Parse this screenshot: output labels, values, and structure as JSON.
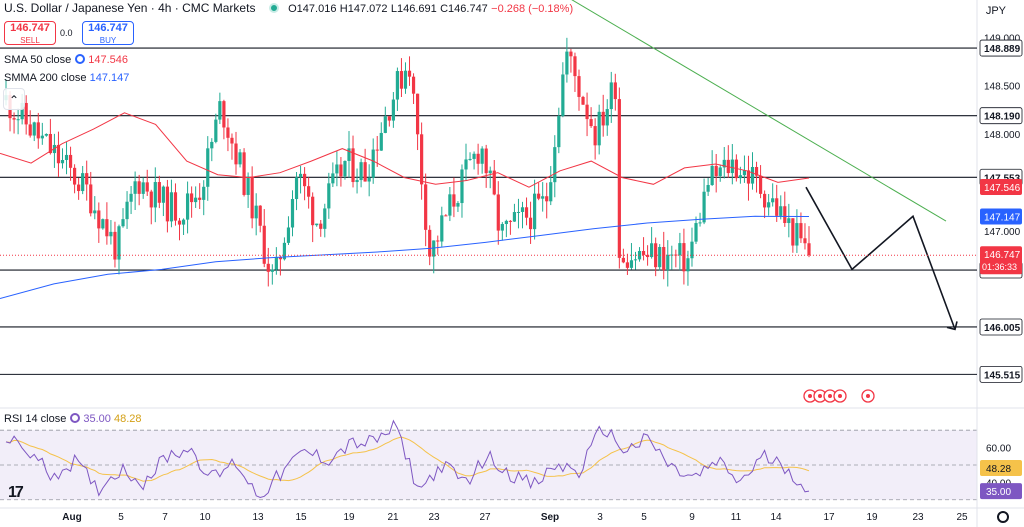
{
  "header": {
    "title": "U.S. Dollar / Japanese Yen · 4h · CMC Markets",
    "open": "O147.016",
    "high": "H147.072",
    "low": "L146.691",
    "close": "C146.747",
    "change": "−0.268 (−0.18%)"
  },
  "trade": {
    "sell_price": "146.747",
    "sell_label": "SELL",
    "spread": "0.0",
    "buy_price": "146.747",
    "buy_label": "BUY"
  },
  "indicators": {
    "sma50_label": "SMA 50 close",
    "sma50_value": "147.546",
    "smma200_label": "SMMA 200 close",
    "smma200_value": "147.147",
    "rsi_label": "RSI 14 close",
    "rsi_value": "35.00",
    "rsi_ma_value": "48.28"
  },
  "currency": "JPY",
  "colors": {
    "up": "#22ab94",
    "down": "#f23645",
    "sma50": "#f23645",
    "smma200": "#2962ff",
    "trendline": "#4caf50",
    "rsi": "#7e57c2",
    "rsi_ma": "#f5c24a",
    "accent": "#2962ff"
  },
  "chart_data": {
    "type": "candlestick",
    "timeframe": "4h",
    "ylim": [
      145.25,
      149.2
    ],
    "price_ticks": [
      "149.000",
      "148.500",
      "148.000",
      "147.000"
    ],
    "time_ticks": [
      "Aug",
      "5",
      "7",
      "10",
      "13",
      "15",
      "19",
      "21",
      "23",
      "27",
      "Sep",
      "3",
      "5",
      "9",
      "11",
      "14",
      "17",
      "19",
      "23",
      "25"
    ],
    "last_price": 146.747,
    "countdown": "01:36:33",
    "horizontal_levels": [
      148.889,
      148.19,
      147.553,
      146.594,
      146.005,
      145.515
    ],
    "anchors": [
      {
        "label": "Aug",
        "close": 148.35
      },
      {
        "label": "Aug",
        "close": 147.4
      },
      {
        "label": "5",
        "close": 146.8
      },
      {
        "label": "5",
        "close": 147.55
      },
      {
        "label": "7",
        "close": 147.3
      },
      {
        "label": "7",
        "close": 147.2
      },
      {
        "label": "10",
        "close": 147.45
      },
      {
        "label": "10",
        "close": 148.3
      },
      {
        "label": "13",
        "close": 147.2
      },
      {
        "label": "13",
        "close": 146.45
      },
      {
        "label": "15",
        "close": 147.6
      },
      {
        "label": "15",
        "close": 147.1
      },
      {
        "label": "19",
        "close": 147.7
      },
      {
        "label": "19",
        "close": 147.6
      },
      {
        "label": "21",
        "close": 148.3
      },
      {
        "label": "21",
        "close": 148.78
      },
      {
        "label": "23",
        "close": 146.75
      },
      {
        "label": "23",
        "close": 147.25
      },
      {
        "label": "27",
        "close": 147.9
      },
      {
        "label": "27",
        "close": 146.95
      },
      {
        "label": "Sep",
        "close": 147.3
      },
      {
        "label": "Sep",
        "close": 148.85
      },
      {
        "label": "3",
        "close": 148.0
      },
      {
        "label": "3",
        "close": 148.55
      },
      {
        "label": "5",
        "close": 148.2
      },
      {
        "label": "5",
        "close": 147.3
      },
      {
        "label": "9",
        "close": 146.7
      },
      {
        "label": "9",
        "close": 147.5
      },
      {
        "label": "11",
        "close": 147.7
      },
      {
        "label": "11",
        "close": 147.55
      },
      {
        "label": "14",
        "close": 147.3
      },
      {
        "label": "14",
        "close": 146.747
      }
    ],
    "sma50": [
      147.8,
      147.7,
      147.9,
      148.05,
      148.22,
      148.1,
      147.72,
      147.58,
      147.55,
      147.6,
      147.72,
      147.85,
      147.72,
      147.55,
      147.48,
      147.52,
      147.6,
      147.45,
      147.62,
      147.72,
      147.55,
      147.48,
      147.65,
      147.69,
      147.62,
      147.5,
      147.546
    ],
    "smma200": [
      146.3,
      146.45,
      146.55,
      146.6,
      146.68,
      146.72,
      146.75,
      146.78,
      146.82,
      146.88,
      146.95,
      147.02,
      147.08,
      147.12,
      147.15,
      147.147
    ],
    "trendline": [
      {
        "label": "3",
        "price": 149.4
      },
      {
        "label": "21",
        "price": 147.1
      }
    ],
    "projection": [
      {
        "label": "14",
        "price": 147.45
      },
      {
        "label": "17",
        "price": 146.6
      },
      {
        "label": "21",
        "price": 147.15
      },
      {
        "label": "25",
        "price": 145.98
      }
    ],
    "rsi": {
      "ylim": [
        27,
        77
      ],
      "ticks": [
        "60.00",
        "40.00"
      ],
      "bands": [
        70,
        30
      ],
      "midline": 50,
      "value": 35.0,
      "ma_value": 48.28,
      "anchors": [
        65,
        58,
        44,
        52,
        36,
        48,
        40,
        55,
        60,
        42,
        52,
        32,
        45,
        58,
        53,
        62,
        63,
        72,
        35,
        50,
        40,
        55,
        45,
        38,
        50,
        46,
        72,
        58,
        65,
        48,
        42,
        52,
        40,
        55,
        49,
        35
      ]
    }
  }
}
